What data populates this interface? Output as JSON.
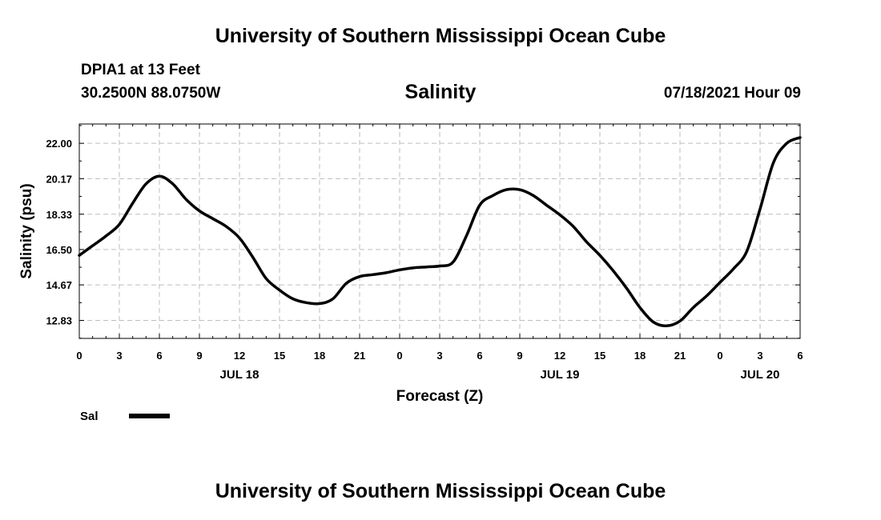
{
  "header": {
    "title": "University of Southern Mississippi Ocean Cube"
  },
  "station": {
    "name": "DPIA1 at 13 Feet",
    "coords": "30.2500N  88.0750W"
  },
  "chart_header": {
    "title": "Salinity",
    "timestamp": "07/18/2021 Hour 09"
  },
  "footer": {
    "title": "University of Southern Mississippi Ocean Cube"
  },
  "chart_data": {
    "type": "line",
    "title": "Salinity",
    "xlabel": "Forecast (Z)",
    "ylabel": "Salinity (psu)",
    "xlim": [
      0,
      54
    ],
    "ylim": [
      11.9,
      23.0
    ],
    "x_ticks": [
      0,
      3,
      6,
      9,
      12,
      15,
      18,
      21,
      24,
      27,
      30,
      33,
      36,
      39,
      42,
      45,
      48,
      51,
      54
    ],
    "x_tick_labels": [
      "0",
      "3",
      "6",
      "9",
      "12",
      "15",
      "18",
      "21",
      "0",
      "3",
      "6",
      "9",
      "12",
      "15",
      "18",
      "21",
      "0",
      "3",
      "6"
    ],
    "y_ticks": [
      12.83,
      14.67,
      16.5,
      18.33,
      20.17,
      22.0
    ],
    "y_tick_labels": [
      "12.83",
      "14.67",
      "16.50",
      "18.33",
      "20.17",
      "22.00"
    ],
    "day_labels": [
      {
        "x": 12,
        "label": "JUL 18"
      },
      {
        "x": 36,
        "label": "JUL 19"
      },
      {
        "x": 51,
        "label": "JUL 20"
      }
    ],
    "grid": true,
    "legend_position": "bottom-left",
    "series": [
      {
        "name": "Sal",
        "color": "#000000",
        "x": [
          0,
          1,
          2,
          3,
          4,
          5,
          6,
          7,
          8,
          9,
          10,
          11,
          12,
          13,
          14,
          15,
          16,
          17,
          18,
          19,
          20,
          21,
          22,
          23,
          24,
          25,
          26,
          27,
          28,
          29,
          30,
          31,
          32,
          33,
          34,
          35,
          36,
          37,
          38,
          39,
          40,
          41,
          42,
          43,
          44,
          45,
          46,
          47,
          48,
          49,
          50,
          51,
          52,
          53,
          54
        ],
        "values": [
          16.2,
          16.7,
          17.2,
          17.8,
          18.9,
          19.9,
          20.3,
          19.9,
          19.1,
          18.5,
          18.1,
          17.7,
          17.1,
          16.1,
          15.0,
          14.4,
          13.95,
          13.75,
          13.7,
          13.95,
          14.75,
          15.1,
          15.2,
          15.3,
          15.45,
          15.55,
          15.6,
          15.65,
          15.85,
          17.2,
          18.8,
          19.3,
          19.6,
          19.6,
          19.3,
          18.8,
          18.3,
          17.7,
          16.9,
          16.2,
          15.4,
          14.5,
          13.5,
          12.75,
          12.55,
          12.8,
          13.5,
          14.1,
          14.8,
          15.5,
          16.4,
          18.6,
          21.0,
          22.0,
          22.3
        ]
      }
    ]
  }
}
